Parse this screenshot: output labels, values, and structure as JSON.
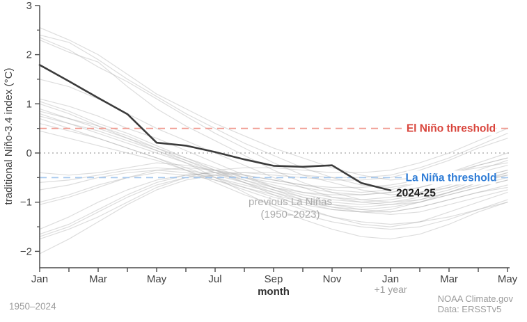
{
  "footer": {
    "left": "1950–2024",
    "credit": "NOAA Climate.gov",
    "data_source": "Data: ERSSTv5"
  },
  "chart_data": {
    "type": "line",
    "title": "",
    "xlabel": "month",
    "ylabel": "traditional Niño-3.4 index (°C)",
    "x_sub_label": "+1 year",
    "x_sub_label_index": 12,
    "n_months": 17,
    "x_major_tick_indices": [
      0,
      2,
      4,
      6,
      8,
      10,
      12,
      14,
      16
    ],
    "x_major_tick_labels": [
      "Jan",
      "Mar",
      "May",
      "Jul",
      "Sep",
      "Nov",
      "Jan",
      "Mar",
      "May"
    ],
    "y_ticks": [
      3,
      2,
      1,
      0,
      -1,
      -2
    ],
    "y_tick_labels": [
      "3",
      "2",
      "1",
      "0",
      "−1",
      "−2"
    ],
    "y_minor_ticks": [
      2.5,
      1.5,
      0.5,
      -0.5,
      -1.5
    ],
    "ylim": [
      -2.4,
      3
    ],
    "grid": "off",
    "thresholds": {
      "el_nino": {
        "value": 0.5,
        "label": "El Niño threshold",
        "line_color": "#f0998f",
        "text_color": "#d9453c"
      },
      "la_nina": {
        "value": -0.5,
        "label": "La Niña threshold",
        "line_color": "#a4c7ee",
        "text_color": "#2e7cd6"
      },
      "zero": {
        "value": 0,
        "line_color": "#b2b2b2"
      }
    },
    "main_series": {
      "name": "2024-25",
      "color": "#3b3b3b",
      "label_color": "#1c1c1c",
      "values": [
        1.79,
        1.46,
        1.12,
        0.79,
        0.21,
        0.15,
        0.02,
        -0.13,
        -0.26,
        -0.28,
        -0.25,
        -0.61,
        -0.76
      ]
    },
    "background_series": {
      "label_line1": "previous La Niñas",
      "label_line2": "(1950–2023)",
      "label_color": "#ababab",
      "color": "#adadad",
      "series": [
        [
          2.55,
          2.3,
          2.0,
          1.6,
          1.2,
          0.9,
          0.6,
          0.35,
          0.1,
          -0.1,
          -0.3,
          -0.45,
          -0.55,
          -0.5,
          -0.4,
          -0.3,
          -0.2
        ],
        [
          2.4,
          2.25,
          1.9,
          1.5,
          1.15,
          0.8,
          0.5,
          0.2,
          -0.05,
          -0.3,
          -0.5,
          -0.65,
          -0.7,
          -0.6,
          -0.45,
          -0.25,
          -0.1
        ],
        [
          2.35,
          2.1,
          1.75,
          1.45,
          1.1,
          0.75,
          0.4,
          0.1,
          -0.2,
          -0.45,
          -0.6,
          -0.75,
          -0.85,
          -0.8,
          -0.7,
          -0.55,
          -0.45
        ],
        [
          2.3,
          2.05,
          1.85,
          1.35,
          0.9,
          0.55,
          0.25,
          -0.05,
          -0.35,
          -0.6,
          -0.8,
          -0.95,
          -1.0,
          -0.95,
          -0.8,
          -0.6,
          -0.4
        ],
        [
          1.5,
          1.35,
          1.1,
          0.8,
          0.5,
          0.25,
          0.0,
          -0.25,
          -0.5,
          -0.7,
          -0.9,
          -1.0,
          -1.05,
          -1.0,
          -0.85,
          -0.7,
          -0.55
        ],
        [
          1.1,
          0.95,
          0.75,
          0.5,
          0.3,
          0.05,
          -0.2,
          -0.45,
          -0.7,
          -0.9,
          -1.05,
          -1.15,
          -1.2,
          -1.1,
          -0.95,
          -0.8,
          -0.65
        ],
        [
          1.05,
          0.85,
          0.6,
          0.4,
          0.15,
          -0.1,
          -0.35,
          -0.6,
          -0.85,
          -1.1,
          -1.3,
          -1.45,
          -1.5,
          -1.4,
          -1.2,
          -1.0,
          -0.8
        ],
        [
          1.0,
          0.8,
          0.55,
          0.3,
          0.05,
          -0.2,
          -0.5,
          -0.8,
          -1.1,
          -1.35,
          -1.55,
          -1.7,
          -1.75,
          -1.65,
          -1.45,
          -1.2,
          -1.0
        ],
        [
          0.9,
          0.7,
          0.5,
          0.3,
          0.1,
          -0.15,
          -0.4,
          -0.6,
          -0.8,
          -1.0,
          -1.15,
          -1.2,
          -1.15,
          -1.0,
          -0.8,
          -0.6,
          -0.45
        ],
        [
          0.85,
          0.7,
          0.55,
          0.35,
          0.1,
          -0.1,
          -0.3,
          -0.5,
          -0.7,
          -0.85,
          -0.95,
          -1.0,
          -0.95,
          -0.85,
          -0.7,
          -0.5,
          -0.35
        ],
        [
          0.8,
          0.6,
          0.4,
          0.2,
          0.0,
          -0.2,
          -0.4,
          -0.55,
          -0.7,
          -0.8,
          -0.85,
          -0.85,
          -0.8,
          -0.7,
          -0.55,
          -0.4,
          -0.25
        ],
        [
          0.75,
          0.6,
          0.45,
          0.25,
          0.05,
          -0.15,
          -0.35,
          -0.55,
          -0.75,
          -0.95,
          -1.1,
          -1.2,
          -1.25,
          -1.2,
          -1.05,
          -0.9,
          -0.75
        ],
        [
          0.7,
          0.5,
          0.3,
          0.1,
          -0.1,
          -0.35,
          -0.6,
          -0.85,
          -1.05,
          -1.25,
          -1.4,
          -1.5,
          -1.55,
          -1.5,
          -1.35,
          -1.15,
          -0.95
        ],
        [
          0.6,
          0.45,
          0.3,
          0.1,
          -0.1,
          -0.3,
          -0.5,
          -0.7,
          -0.9,
          -1.05,
          -1.15,
          -1.2,
          -1.2,
          -1.1,
          -0.95,
          -0.8,
          -0.7
        ],
        [
          0.45,
          0.3,
          0.15,
          0.0,
          -0.15,
          -0.35,
          -0.55,
          -0.75,
          -0.95,
          -1.15,
          -1.3,
          -1.4,
          -1.45,
          -1.4,
          -1.3,
          -1.15,
          -1.0
        ],
        [
          -0.4,
          -0.45,
          -0.4,
          -0.3,
          -0.2,
          -0.25,
          -0.35,
          -0.5,
          -0.65,
          -0.8,
          -0.9,
          -0.95,
          -0.9,
          -0.8,
          -0.65,
          -0.5,
          -0.35
        ],
        [
          -0.6,
          -0.55,
          -0.45,
          -0.35,
          -0.3,
          -0.35,
          -0.45,
          -0.6,
          -0.75,
          -0.9,
          -1.0,
          -1.05,
          -1.0,
          -0.9,
          -0.75,
          -0.55,
          -0.4
        ],
        [
          -0.75,
          -0.65,
          -0.5,
          -0.4,
          -0.35,
          -0.4,
          -0.5,
          -0.65,
          -0.8,
          -0.95,
          -1.05,
          -1.1,
          -1.05,
          -0.95,
          -0.8,
          -0.65,
          -0.5
        ],
        [
          -1.0,
          -0.85,
          -0.65,
          -0.5,
          -0.4,
          -0.45,
          -0.55,
          -0.7,
          -0.85,
          -1.0,
          -1.1,
          -1.15,
          -1.1,
          -1.0,
          -0.85,
          -0.7,
          -0.55
        ],
        [
          -1.05,
          -0.9,
          -0.7,
          -0.5,
          -0.35,
          -0.3,
          -0.35,
          -0.45,
          -0.55,
          -0.65,
          -0.7,
          -0.7,
          -0.65,
          -0.55,
          -0.4,
          -0.25,
          -0.1
        ],
        [
          -1.55,
          -1.3,
          -1.0,
          -0.75,
          -0.55,
          -0.45,
          -0.4,
          -0.45,
          -0.55,
          -0.65,
          -0.75,
          -0.8,
          -0.75,
          -0.6,
          -0.4,
          -0.2,
          0.0
        ],
        [
          -1.65,
          -1.45,
          -1.15,
          -0.85,
          -0.6,
          -0.45,
          -0.4,
          -0.4,
          -0.45,
          -0.5,
          -0.55,
          -0.55,
          -0.5,
          -0.35,
          -0.15,
          0.1,
          0.3
        ],
        [
          -1.7,
          -1.5,
          -1.2,
          -0.9,
          -0.65,
          -0.5,
          -0.45,
          -0.5,
          -0.6,
          -0.7,
          -0.8,
          -0.85,
          -0.8,
          -0.7,
          -0.55,
          -0.35,
          -0.15
        ],
        [
          -1.75,
          -1.55,
          -1.3,
          -1.0,
          -0.7,
          -0.5,
          -0.35,
          -0.3,
          -0.3,
          -0.35,
          -0.4,
          -0.4,
          -0.35,
          -0.2,
          0.0,
          0.25,
          0.5
        ],
        [
          -2.05,
          -1.75,
          -1.4,
          -1.05,
          -0.75,
          -0.55,
          -0.45,
          -0.4,
          -0.4,
          -0.45,
          -0.5,
          -0.5,
          -0.45,
          -0.3,
          -0.1,
          0.15,
          0.4
        ]
      ]
    },
    "axis_color": "#4a4a4a",
    "tick_label_color": "#3f3f3f"
  }
}
